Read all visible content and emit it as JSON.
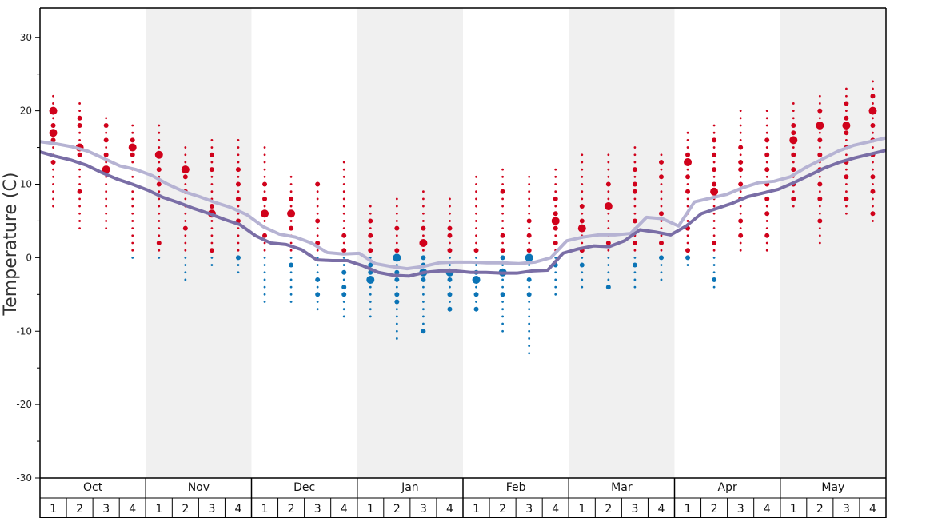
{
  "chart_data": {
    "type": "scatter",
    "title": "",
    "ylabel": "Temperature (C)",
    "ylim": [
      -30,
      34
    ],
    "yticks": [
      30,
      20,
      10,
      0,
      -10,
      -20,
      -30
    ],
    "grid": false,
    "months": [
      "Oct",
      "Nov",
      "Dec",
      "Jan",
      "Feb",
      "Mar",
      "Apr",
      "May"
    ],
    "weeks": [
      "1",
      "2",
      "3",
      "4"
    ],
    "shaded_months": [
      "Nov",
      "Jan",
      "Mar",
      "May"
    ],
    "colors": {
      "warm_dots": "#d0021b",
      "cold_dots": "#0b74b6",
      "line_upper": "#b6b3d3",
      "line_lower": "#7a6ea6",
      "shade": "#f0f0f0"
    },
    "series": [
      {
        "values": [
          15.8,
          15.5,
          15.1,
          14.5,
          13.5,
          12.5,
          12.0,
          11.2,
          10.0,
          9.0,
          8.3,
          7.5,
          6.8,
          5.8,
          4.2,
          3.2,
          2.8,
          2.0,
          0.7,
          0.5,
          0.6,
          -0.8,
          -1.2,
          -1.5,
          -1.2,
          -0.7,
          -0.6,
          -0.6,
          -0.7,
          -0.7,
          -0.8,
          -0.6,
          0.0,
          2.3,
          2.8,
          3.1,
          3.1,
          3.3,
          5.5,
          5.3,
          4.3,
          7.6,
          8.1,
          8.6,
          9.5,
          10.2,
          10.4,
          11.0,
          12.3,
          13.4,
          14.5,
          15.3,
          15.8,
          16.3
        ]
      },
      {
        "values": [
          14.4,
          13.8,
          13.3,
          12.6,
          11.6,
          10.7,
          10.0,
          9.2,
          8.2,
          7.5,
          6.7,
          6.0,
          5.2,
          4.5,
          3.0,
          2.0,
          1.8,
          1.1,
          -0.3,
          -0.4,
          -0.4,
          -1.1,
          -2.0,
          -2.4,
          -2.5,
          -2.0,
          -1.8,
          -1.8,
          -2.0,
          -2.0,
          -2.1,
          -2.1,
          -1.8,
          -1.7,
          0.6,
          1.2,
          1.6,
          1.5,
          2.3,
          3.8,
          3.5,
          3.1,
          4.3,
          6.0,
          6.7,
          7.4,
          8.3,
          8.8,
          9.3,
          10.2,
          11.2,
          12.2,
          13.0,
          13.6,
          14.1,
          14.6
        ]
      }
    ],
    "dot_columns": [
      {
        "month": "Oct",
        "week": "1",
        "max": 22,
        "min": 7,
        "big": [
          17,
          20
        ],
        "mid": [
          18,
          16,
          13
        ]
      },
      {
        "month": "Oct",
        "week": "2",
        "max": 21,
        "min": 4,
        "big": [
          15
        ],
        "mid": [
          19,
          18,
          14,
          9
        ]
      },
      {
        "month": "Oct",
        "week": "3",
        "max": 19,
        "min": 4,
        "big": [
          12
        ],
        "mid": [
          18,
          16,
          14
        ]
      },
      {
        "month": "Oct",
        "week": "4",
        "max": 18,
        "min": 0,
        "big": [
          15
        ],
        "mid": [
          14,
          16
        ]
      },
      {
        "month": "Nov",
        "week": "1",
        "max": 18,
        "min": 0,
        "big": [
          14
        ],
        "mid": [
          12,
          10,
          2
        ]
      },
      {
        "month": "Nov",
        "week": "2",
        "max": 15,
        "min": -3,
        "big": [
          12
        ],
        "mid": [
          11,
          9,
          4
        ]
      },
      {
        "month": "Nov",
        "week": "3",
        "max": 16,
        "min": -1,
        "big": [
          6
        ],
        "mid": [
          14,
          12,
          7,
          1
        ]
      },
      {
        "month": "Nov",
        "week": "4",
        "max": 16,
        "min": -2,
        "big": [],
        "mid": [
          12,
          10,
          8,
          5,
          0
        ]
      },
      {
        "month": "Dec",
        "week": "1",
        "max": 15,
        "min": -6,
        "big": [
          6
        ],
        "mid": [
          10,
          8,
          3
        ]
      },
      {
        "month": "Dec",
        "week": "2",
        "max": 11,
        "min": -6,
        "big": [
          6
        ],
        "mid": [
          8,
          4,
          -1
        ]
      },
      {
        "month": "Dec",
        "week": "3",
        "max": 10,
        "min": -7,
        "big": [],
        "mid": [
          10,
          5,
          2,
          -3,
          -5
        ]
      },
      {
        "month": "Dec",
        "week": "4",
        "max": 13,
        "min": -8,
        "big": [],
        "mid": [
          3,
          1,
          -2,
          -4,
          -5
        ]
      },
      {
        "month": "Jan",
        "week": "1",
        "max": 7,
        "min": -8,
        "big": [
          -3
        ],
        "mid": [
          5,
          3,
          1,
          -1,
          -2
        ]
      },
      {
        "month": "Jan",
        "week": "2",
        "max": 8,
        "min": -11,
        "big": [
          0
        ],
        "mid": [
          4,
          1,
          -2,
          -3,
          -5,
          -6
        ]
      },
      {
        "month": "Jan",
        "week": "3",
        "max": 9,
        "min": -10,
        "big": [
          2,
          -2
        ],
        "mid": [
          4,
          0,
          -1,
          -3,
          -10
        ]
      },
      {
        "month": "Jan",
        "week": "4",
        "max": 8,
        "min": -7,
        "big": [
          -2
        ],
        "mid": [
          4,
          3,
          1,
          -3,
          -5,
          -7
        ]
      },
      {
        "month": "Feb",
        "week": "1",
        "max": 11,
        "min": -7,
        "big": [
          -3
        ],
        "mid": [
          1,
          -2,
          -5,
          -7
        ]
      },
      {
        "month": "Feb",
        "week": "2",
        "max": 12,
        "min": -10,
        "big": [
          -2
        ],
        "mid": [
          9,
          3,
          1,
          0,
          -5
        ]
      },
      {
        "month": "Feb",
        "week": "3",
        "max": 11,
        "min": -13,
        "big": [
          0
        ],
        "mid": [
          5,
          3,
          1,
          -3,
          -5
        ]
      },
      {
        "month": "Feb",
        "week": "4",
        "max": 12,
        "min": -5,
        "big": [
          5
        ],
        "mid": [
          8,
          6,
          4,
          2,
          -1
        ]
      },
      {
        "month": "Mar",
        "week": "1",
        "max": 14,
        "min": -4,
        "big": [
          4
        ],
        "mid": [
          7,
          5,
          1,
          -1
        ]
      },
      {
        "month": "Mar",
        "week": "2",
        "max": 14,
        "min": -4,
        "big": [
          7
        ],
        "mid": [
          10,
          2,
          -4
        ]
      },
      {
        "month": "Mar",
        "week": "3",
        "max": 15,
        "min": -4,
        "big": [],
        "mid": [
          12,
          10,
          9,
          5,
          2,
          -1
        ]
      },
      {
        "month": "Mar",
        "week": "4",
        "max": 14,
        "min": -3,
        "big": [],
        "mid": [
          13,
          11,
          6,
          2,
          0
        ]
      },
      {
        "month": "Apr",
        "week": "1",
        "max": 17,
        "min": -1,
        "big": [
          13
        ],
        "mid": [
          14,
          11,
          9,
          4,
          1,
          0
        ]
      },
      {
        "month": "Apr",
        "week": "2",
        "max": 18,
        "min": -4,
        "big": [
          9
        ],
        "mid": [
          16,
          14,
          12,
          10,
          2,
          -3
        ]
      },
      {
        "month": "Apr",
        "week": "3",
        "max": 20,
        "min": 1,
        "big": [],
        "mid": [
          15,
          13,
          12,
          10,
          8,
          5,
          3
        ]
      },
      {
        "month": "Apr",
        "week": "4",
        "max": 20,
        "min": 1,
        "big": [],
        "mid": [
          16,
          14,
          12,
          10,
          8,
          6,
          3
        ]
      },
      {
        "month": "May",
        "week": "1",
        "max": 21,
        "min": 7,
        "big": [
          16
        ],
        "mid": [
          18,
          17,
          14,
          12,
          10,
          8
        ]
      },
      {
        "month": "May",
        "week": "2",
        "max": 22,
        "min": 2,
        "big": [
          18
        ],
        "mid": [
          20,
          16,
          14,
          12,
          10,
          8,
          5
        ]
      },
      {
        "month": "May",
        "week": "3",
        "max": 23,
        "min": 6,
        "big": [
          18
        ],
        "mid": [
          21,
          19,
          17,
          15,
          13,
          11,
          8
        ]
      },
      {
        "month": "May",
        "week": "4",
        "max": 24,
        "min": 5,
        "big": [
          20
        ],
        "mid": [
          22,
          18,
          16,
          14,
          11,
          9,
          6
        ]
      }
    ]
  }
}
